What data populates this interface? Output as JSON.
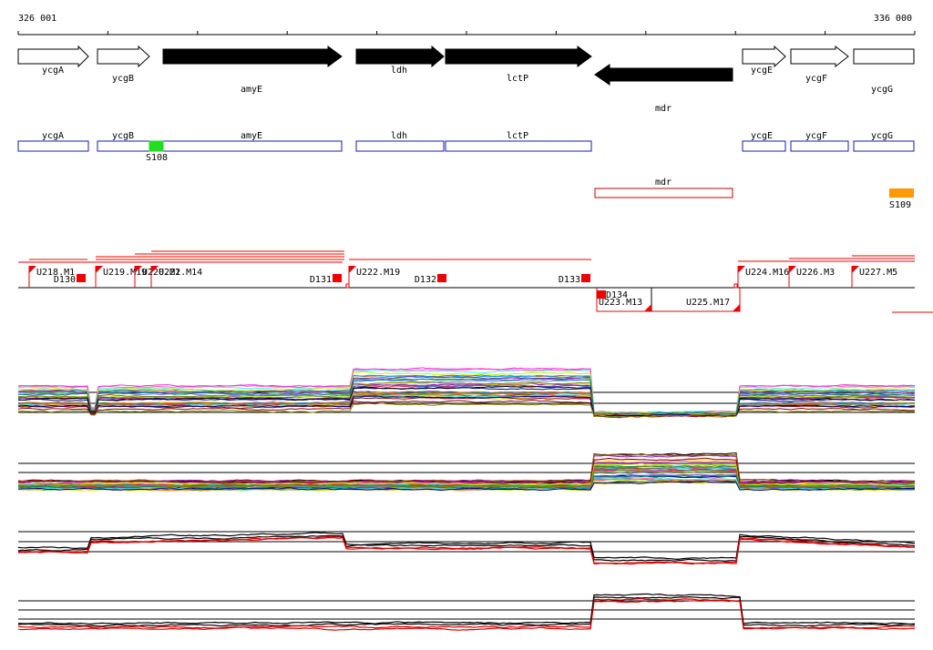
{
  "ruler": {
    "start_label": "326 001",
    "end_label": "336 000"
  },
  "genes": [
    {
      "name": "ycgA",
      "strand": "+",
      "style": "outline"
    },
    {
      "name": "ycgB",
      "strand": "+",
      "style": "outline"
    },
    {
      "name": "amyE",
      "strand": "+",
      "style": "filled"
    },
    {
      "name": "ldh",
      "strand": "+",
      "style": "filled"
    },
    {
      "name": "lctP",
      "strand": "+",
      "style": "filled"
    },
    {
      "name": "mdr",
      "strand": "-",
      "style": "filled"
    },
    {
      "name": "ycgE",
      "strand": "+",
      "style": "outline"
    },
    {
      "name": "ycgF",
      "strand": "+",
      "style": "outline"
    },
    {
      "name": "ycgG",
      "strand": "none",
      "style": "outline"
    }
  ],
  "annotation_boxes": [
    {
      "name": "ycgA",
      "strand": "+"
    },
    {
      "name": "ycgB",
      "strand": "+"
    },
    {
      "name": "amyE",
      "strand": "+"
    },
    {
      "name": "ldh",
      "strand": "+"
    },
    {
      "name": "lctP",
      "strand": "+"
    },
    {
      "name": "mdr",
      "strand": "-"
    },
    {
      "name": "ycgE",
      "strand": "+"
    },
    {
      "name": "ycgF",
      "strand": "+"
    },
    {
      "name": "ycgG",
      "strand": "+"
    }
  ],
  "sites": [
    {
      "name": "S108",
      "color": "#22dd22"
    },
    {
      "name": "S109",
      "color": "#ff9900"
    }
  ],
  "segments_top": [
    {
      "name": "U218.M1"
    },
    {
      "name": "U219.M19"
    },
    {
      "name": "U220.M2"
    },
    {
      "name": "U221.M14"
    },
    {
      "name": "U222.M19"
    },
    {
      "name": "U224.M16"
    },
    {
      "name": "U226.M3"
    },
    {
      "name": "U227.M5"
    }
  ],
  "downshifts": [
    {
      "name": "D130"
    },
    {
      "name": "D131"
    },
    {
      "name": "D132"
    },
    {
      "name": "D133"
    },
    {
      "name": "D134"
    }
  ],
  "segments_bottom": [
    {
      "name": "U223.M13"
    },
    {
      "name": "U225.M17"
    }
  ],
  "colors": {
    "gene_box": "#1a1ab3",
    "mdr_box": "#cc0000",
    "marker": "#ee0000",
    "s108": "#22dd22",
    "s109": "#ff9900",
    "profile_main": "#000000",
    "profile_alt": "#dd0000"
  }
}
